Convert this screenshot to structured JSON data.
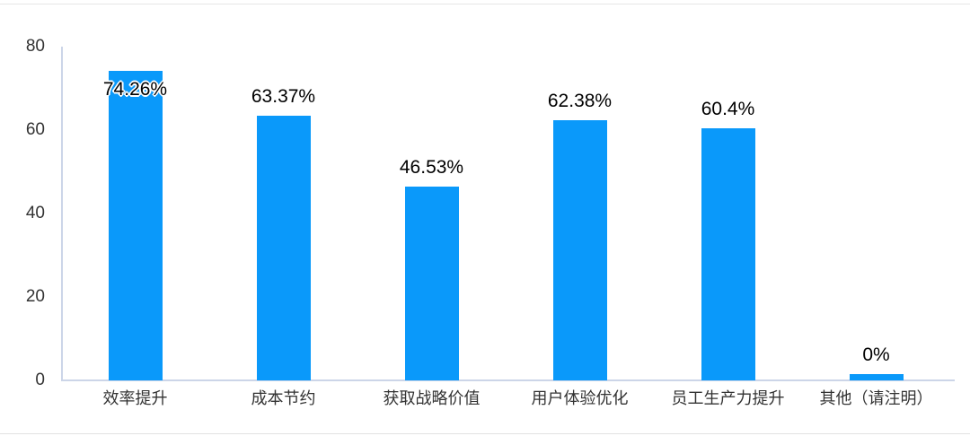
{
  "chart_data": {
    "type": "bar",
    "categories": [
      "效率提升",
      "成本节约",
      "获取战略价值",
      "用户体验优化",
      "员工生产力提升",
      "其他（请注明）"
    ],
    "values": [
      74.26,
      63.37,
      46.53,
      62.38,
      60.4,
      0
    ],
    "value_labels": [
      "74.26%",
      "63.37%",
      "46.53%",
      "62.38%",
      "60.4%",
      "0%"
    ],
    "title": "",
    "xlabel": "",
    "ylabel": "",
    "ylim": [
      0,
      80
    ],
    "yticks": [
      0,
      20,
      40,
      60,
      80
    ],
    "grid": false,
    "legend": "none",
    "value_label_placement": [
      "inside-top",
      "above",
      "above",
      "above",
      "above",
      "above"
    ]
  },
  "colors": {
    "bar": "#0a99fa",
    "axis_line": "#ccd5e8",
    "tick_text": "#333333",
    "value_text": "#000000",
    "card_border": "#e7e7e7",
    "background": "#ffffff"
  }
}
